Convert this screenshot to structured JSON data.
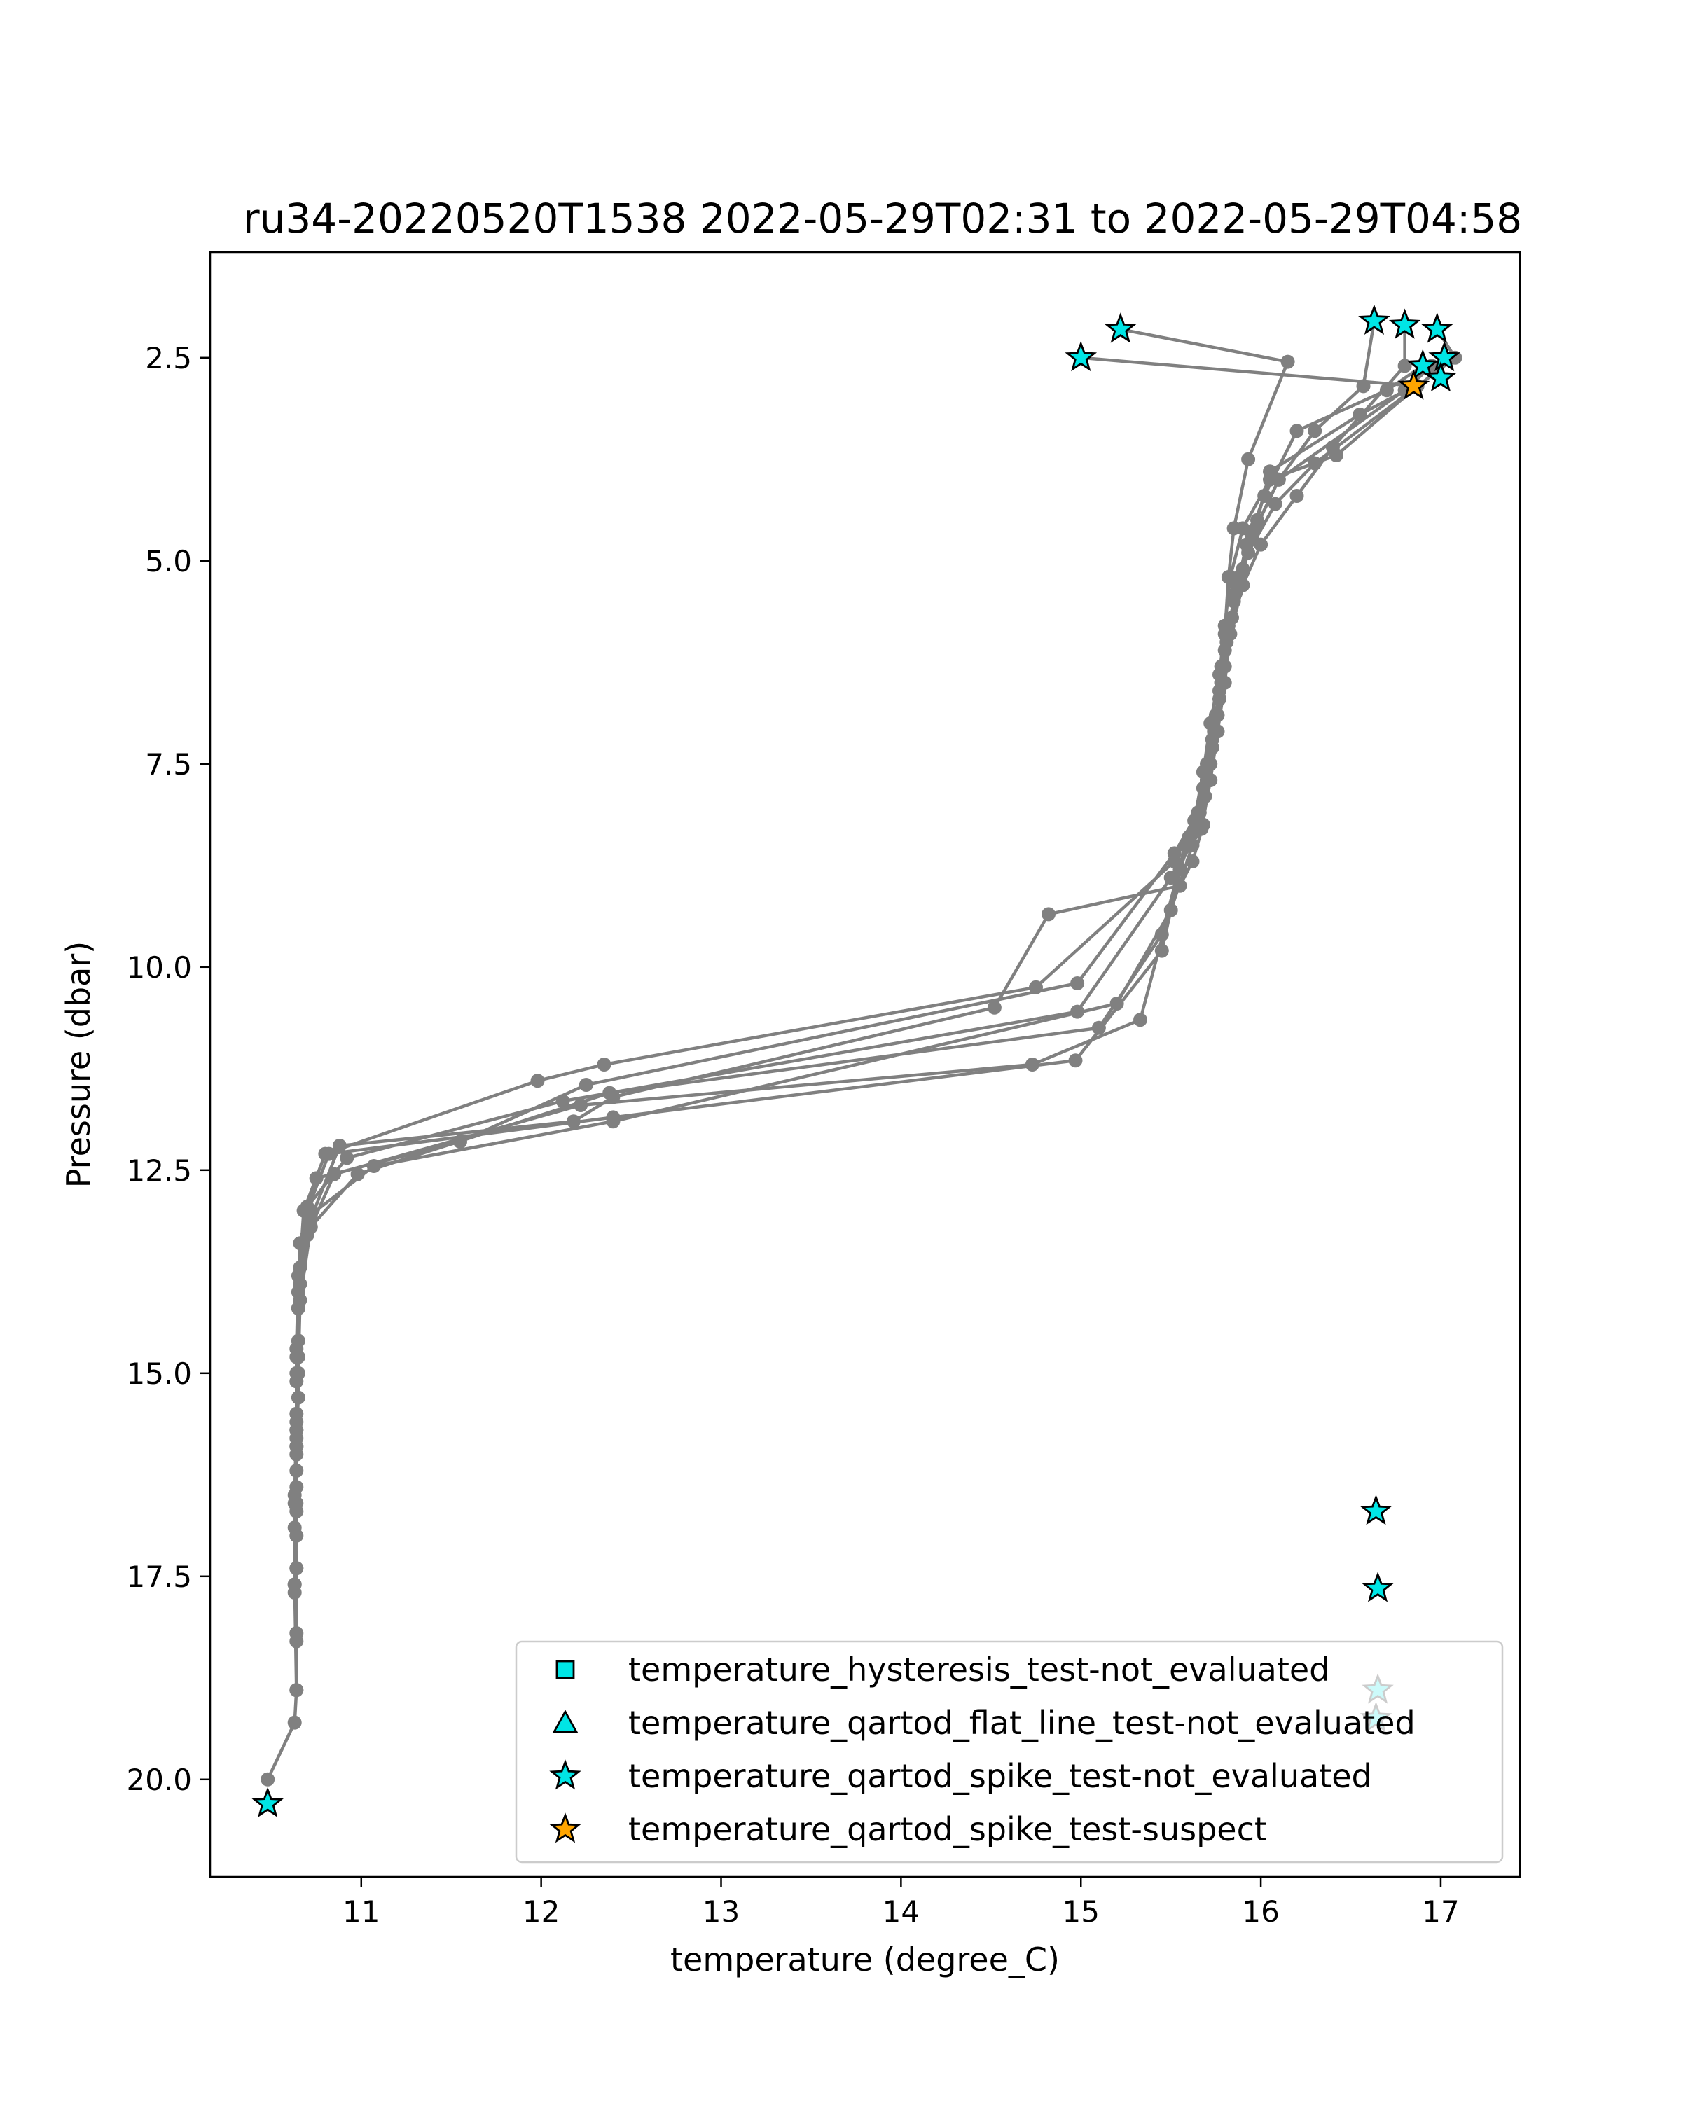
{
  "chart_data": {
    "type": "line",
    "title": "ru34-20220520T1538 2022-05-29T02:31 to 2022-05-29T04:58",
    "xlabel": "temperature (degree_C)",
    "ylabel": "Pressure (dbar)",
    "xlim": [
      10.16,
      17.44
    ],
    "ylim": [
      21.2,
      1.2
    ],
    "y_inverted": true,
    "xticks": [
      11,
      12,
      13,
      14,
      15,
      16,
      17
    ],
    "yticks": [
      2.5,
      5.0,
      7.5,
      10.0,
      12.5,
      15.0,
      17.5,
      20.0
    ],
    "xtick_labels": [
      "11",
      "12",
      "13",
      "14",
      "15",
      "16",
      "17"
    ],
    "ytick_labels": [
      "2.5",
      "5.0",
      "7.5",
      "10.0",
      "12.5",
      "15.0",
      "17.5",
      "20.0"
    ],
    "grid": false,
    "profile_color": "#808080",
    "profiles": [
      {
        "x": [
          15.22,
          16.15,
          15.93,
          15.85,
          15.82,
          15.8,
          15.78,
          15.75,
          15.7,
          15.68,
          15.62,
          15.55,
          14.82,
          14.52,
          12.4,
          12.18,
          10.88,
          10.72,
          10.66,
          10.65,
          10.65,
          10.64,
          10.64,
          10.64,
          10.63,
          10.64,
          10.64,
          10.63,
          10.48
        ],
        "y": [
          2.15,
          2.55,
          3.75,
          4.6,
          5.2,
          5.9,
          6.5,
          7.1,
          7.7,
          8.25,
          8.7,
          9.0,
          9.35,
          10.5,
          11.6,
          11.9,
          12.2,
          13.1,
          13.7,
          14.6,
          15.3,
          15.9,
          16.4,
          17.0,
          17.6,
          18.3,
          18.9,
          19.3,
          20.0
        ]
      },
      {
        "x": [
          15.0,
          16.87,
          16.42,
          16.05,
          15.9,
          15.83,
          15.8,
          15.77,
          15.72,
          15.68,
          15.63,
          15.52,
          14.75,
          12.35,
          11.98,
          10.8,
          10.68,
          10.65,
          10.64,
          10.64,
          10.64,
          10.63,
          10.63,
          10.64
        ],
        "y": [
          2.5,
          2.85,
          3.7,
          4.0,
          4.6,
          5.2,
          5.8,
          6.4,
          7.0,
          7.6,
          8.2,
          8.7,
          10.25,
          11.2,
          11.4,
          12.3,
          13.0,
          14.0,
          14.8,
          15.5,
          16.2,
          16.9,
          17.6,
          18.9
        ]
      },
      {
        "x": [
          16.63,
          16.57,
          16.3,
          16.1,
          15.97,
          15.88,
          15.82,
          15.78,
          15.75,
          15.7,
          15.65,
          15.52,
          14.98,
          12.25,
          11.55,
          10.75,
          10.66,
          10.65,
          10.64,
          10.64,
          10.63,
          10.64,
          10.64
        ],
        "y": [
          2.05,
          2.85,
          3.4,
          4.0,
          4.6,
          5.2,
          5.8,
          6.3,
          6.9,
          7.5,
          8.1,
          8.6,
          10.2,
          11.45,
          12.15,
          12.6,
          13.4,
          14.2,
          15.0,
          15.8,
          16.6,
          17.4,
          18.2
        ]
      },
      {
        "x": [
          16.8,
          16.8,
          16.4,
          16.2,
          16.0,
          15.9,
          15.83,
          15.8,
          15.76,
          15.72,
          15.67,
          15.5,
          14.98,
          12.12,
          10.92,
          10.7,
          10.65,
          10.64,
          10.64,
          10.63,
          10.64
        ],
        "y": [
          2.1,
          2.6,
          3.6,
          4.2,
          4.8,
          5.3,
          5.9,
          6.5,
          7.1,
          7.7,
          8.3,
          8.9,
          10.55,
          11.65,
          12.35,
          12.95,
          13.8,
          14.7,
          15.6,
          16.5,
          17.4
        ]
      },
      {
        "x": [
          16.98,
          17.08,
          16.3,
          16.08,
          15.93,
          15.85,
          15.8,
          15.77,
          15.73,
          15.69,
          15.62,
          15.5,
          15.2,
          12.4,
          11.07,
          10.72,
          10.66,
          10.65,
          10.64,
          10.64,
          10.63
        ],
        "y": [
          2.15,
          2.5,
          3.8,
          4.3,
          4.9,
          5.5,
          6.1,
          6.7,
          7.3,
          7.9,
          8.5,
          9.3,
          10.45,
          11.9,
          12.45,
          13.05,
          13.9,
          14.8,
          15.7,
          16.6,
          17.7
        ]
      },
      {
        "x": [
          16.9,
          16.7,
          16.2,
          16.02,
          15.92,
          15.86,
          15.81,
          15.77,
          15.73,
          15.68,
          15.58,
          15.45,
          15.1,
          12.38,
          10.98,
          10.72,
          10.66,
          10.65,
          10.64,
          10.64
        ],
        "y": [
          2.6,
          2.9,
          3.4,
          4.2,
          4.8,
          5.4,
          6.0,
          6.6,
          7.2,
          7.8,
          8.5,
          9.6,
          10.75,
          11.55,
          12.55,
          13.2,
          14.1,
          15.0,
          15.9,
          16.7
        ]
      },
      {
        "x": [
          16.85,
          16.55,
          16.05,
          15.98,
          15.9,
          15.84,
          15.8,
          15.76,
          15.72,
          15.66,
          15.55,
          15.45,
          14.97,
          12.4,
          10.82,
          10.7,
          10.66,
          10.65,
          10.64
        ],
        "y": [
          2.85,
          3.2,
          3.9,
          4.5,
          5.1,
          5.7,
          6.3,
          6.9,
          7.5,
          8.1,
          8.8,
          9.8,
          11.15,
          11.85,
          12.3,
          13.0,
          13.9,
          14.8,
          15.7
        ]
      },
      {
        "x": [
          17.0,
          16.95,
          16.8,
          16.1,
          15.95,
          15.87,
          15.82,
          15.78,
          15.74,
          15.7,
          15.6,
          15.33,
          14.73,
          12.22,
          10.85,
          10.7,
          10.65,
          10.64,
          10.64
        ],
        "y": [
          2.75,
          2.6,
          2.9,
          4.0,
          4.7,
          5.3,
          5.9,
          6.5,
          7.1,
          7.7,
          8.4,
          10.65,
          11.2,
          11.7,
          12.55,
          13.3,
          14.2,
          15.1,
          16.0
        ]
      }
    ],
    "markers": [
      {
        "series": "temperature_qartod_spike_test-not_evaluated",
        "x": [
          15.22,
          15.0,
          16.63,
          16.8,
          16.98,
          16.9,
          17.02,
          17.0,
          16.64,
          16.65,
          16.65,
          16.64,
          10.48
        ],
        "y": [
          2.15,
          2.5,
          2.05,
          2.1,
          2.15,
          2.6,
          2.5,
          2.75,
          16.7,
          17.65,
          18.9,
          19.25,
          20.3
        ]
      },
      {
        "series": "temperature_qartod_spike_test-suspect",
        "x": [
          16.85
        ],
        "y": [
          2.85
        ]
      }
    ],
    "legend": {
      "placement": "lower right",
      "entries": [
        {
          "label": "temperature_hysteresis_test-not_evaluated",
          "marker": "square",
          "color": "#00e5e5"
        },
        {
          "label": "temperature_qartod_flat_line_test-not_evaluated",
          "marker": "triangle",
          "color": "#00e5e5"
        },
        {
          "label": "temperature_qartod_spike_test-not_evaluated",
          "marker": "star",
          "color": "#00e5e5"
        },
        {
          "label": "temperature_qartod_spike_test-suspect",
          "marker": "star",
          "color": "#ffa500"
        }
      ]
    },
    "colors": {
      "not_evaluated": "#00e5e5",
      "suspect": "#ffa500",
      "edge": "#000000"
    }
  }
}
